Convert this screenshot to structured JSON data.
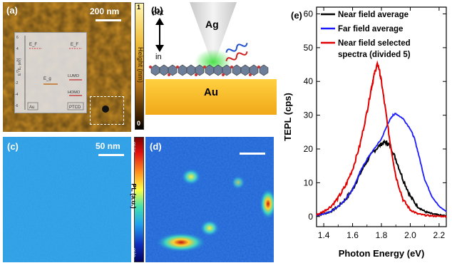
{
  "panels": {
    "a": {
      "label": "(a)",
      "scalebar": "200 nm",
      "colorbar_max": "1",
      "colorbar_min": "0",
      "colorbar_title": "Height (nm)",
      "inset": {
        "ylabel": "E - E₀ (eV)",
        "yticks": [
          "6",
          "4",
          "2",
          "0",
          "-2",
          "-4",
          "-6"
        ],
        "ef_label_left": "E_F",
        "ef_label_right": "E_F",
        "eg_label": "E_g",
        "lumo": "LUMO",
        "homo": "HOMO",
        "au": "Au",
        "ptcd": "PTCD"
      }
    },
    "b": {
      "label": "(b)",
      "out": "out",
      "in": "in",
      "ag": "Ag",
      "au": "Au"
    },
    "c": {
      "label": "(c)",
      "scalebar": "50 nm"
    },
    "d": {
      "label": "(d)",
      "colorbar_max": "max",
      "colorbar_min": "min",
      "colorbar_title": "PL (a.u.)"
    },
    "e": {
      "label": "(e)"
    }
  },
  "colors": {
    "near_field": "#000000",
    "far_field": "#1a1aff",
    "selected": "#e00000",
    "pl_bg": "#2aa4e8",
    "au_substrate": "#f6c02a"
  },
  "chart_data": {
    "type": "line",
    "xlabel": "Photon Energy (eV)",
    "ylabel": "TEPL (cps)",
    "xlim": [
      1.35,
      2.25
    ],
    "ylim": [
      -3,
      62
    ],
    "xticks": [
      1.4,
      1.6,
      1.8,
      2.0,
      2.2
    ],
    "yticks": [
      0,
      10,
      20,
      30,
      40,
      50,
      60
    ],
    "xtick_labels": [
      "1.4",
      "1.6",
      "1.8",
      "2.0",
      "2.2"
    ],
    "ytick_labels": [
      "0",
      "10",
      "20",
      "30",
      "40",
      "50",
      "60"
    ],
    "legend_position": "top-left",
    "series": [
      {
        "name": "Near field average",
        "color": "#000000",
        "x": [
          1.35,
          1.4,
          1.45,
          1.5,
          1.55,
          1.6,
          1.65,
          1.7,
          1.75,
          1.8,
          1.83,
          1.86,
          1.9,
          1.95,
          2.0,
          2.05,
          2.1,
          2.15,
          2.2,
          2.25
        ],
        "y": [
          0.3,
          0.8,
          1.5,
          3,
          5,
          8,
          12.5,
          16.5,
          19.5,
          21.5,
          22,
          21,
          17,
          11,
          6,
          3,
          1.5,
          0.8,
          0.4,
          0.2
        ]
      },
      {
        "name": "Far field average",
        "color": "#1a1aff",
        "x": [
          1.35,
          1.4,
          1.45,
          1.5,
          1.55,
          1.6,
          1.65,
          1.7,
          1.75,
          1.8,
          1.85,
          1.88,
          1.9,
          1.95,
          2.0,
          2.03,
          2.06,
          2.1,
          2.15,
          2.2,
          2.25
        ],
        "y": [
          0.3,
          0.8,
          1.5,
          3,
          5,
          8,
          13,
          17,
          20,
          23,
          28,
          30,
          30.5,
          29,
          26,
          23,
          18,
          11,
          6,
          3,
          1.5
        ]
      },
      {
        "name": "Near field selected spectra (divided 5)",
        "color": "#e00000",
        "x": [
          1.35,
          1.4,
          1.45,
          1.5,
          1.55,
          1.6,
          1.65,
          1.7,
          1.73,
          1.75,
          1.77,
          1.78,
          1.8,
          1.83,
          1.86,
          1.9,
          1.95,
          2.0,
          2.05,
          2.1,
          2.15,
          2.2,
          2.25
        ],
        "y": [
          0.5,
          1.5,
          3,
          5.5,
          9,
          14,
          21,
          31,
          38,
          42,
          45,
          44.5,
          40,
          31,
          22,
          12,
          5,
          2,
          0.8,
          0.4,
          0.2,
          0.1,
          0.1
        ]
      }
    ]
  }
}
